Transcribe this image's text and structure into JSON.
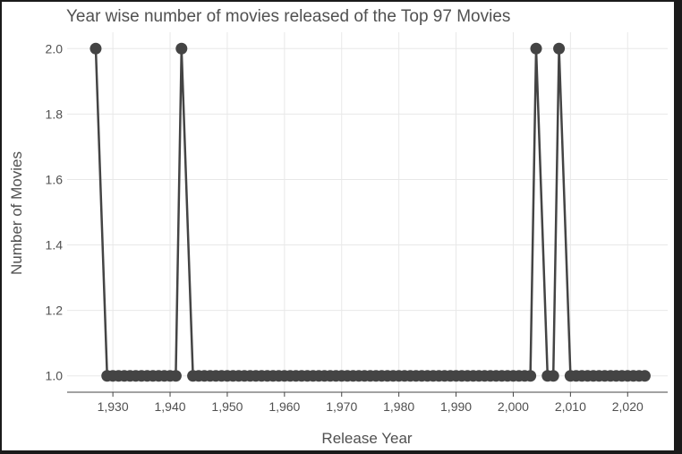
{
  "chart_data": {
    "type": "line",
    "title": "Year wise number of movies released of the Top 97 Movies",
    "xlabel": "Release Year",
    "ylabel": "Number of Movies",
    "xlim": [
      1922,
      2027
    ],
    "ylim": [
      0.95,
      2.05
    ],
    "x_ticks": [
      1930,
      1940,
      1950,
      1960,
      1970,
      1980,
      1990,
      2000,
      2010,
      2020
    ],
    "x_tick_labels": [
      "1,930",
      "1,940",
      "1,950",
      "1,960",
      "1,970",
      "1,980",
      "1,990",
      "2,000",
      "2,010",
      "2,020"
    ],
    "y_ticks": [
      1.0,
      1.2,
      1.4,
      1.6,
      1.8,
      2.0
    ],
    "y_tick_labels": [
      "1.0",
      "1.2",
      "1.4",
      "1.6",
      "1.8",
      "2.0"
    ],
    "grid": true,
    "line_color": "#444444",
    "series": [
      {
        "x": [
          1927,
          1929,
          1930,
          1931,
          1932,
          1933,
          1934,
          1935,
          1936,
          1937,
          1938,
          1939,
          1940,
          1941,
          1942,
          1944,
          1945,
          1946,
          1947,
          1948,
          1949,
          1950,
          1951,
          1952,
          1953,
          1954,
          1955,
          1956,
          1957,
          1958,
          1959,
          1960,
          1961,
          1962,
          1963,
          1964,
          1965,
          1966,
          1967,
          1968,
          1969,
          1970,
          1971,
          1972,
          1973,
          1974,
          1975,
          1976,
          1977,
          1978,
          1979,
          1980,
          1981,
          1982,
          1983,
          1984,
          1985,
          1986,
          1987,
          1988,
          1989,
          1990,
          1991,
          1992,
          1993,
          1994,
          1995,
          1996,
          1997,
          1998,
          1999,
          2000,
          2001,
          2002,
          2003,
          2004,
          2006,
          2007,
          2008,
          2010,
          2011,
          2012,
          2013,
          2014,
          2015,
          2016,
          2017,
          2018,
          2019,
          2020,
          2021,
          2022,
          2023
        ],
        "y": [
          2,
          1,
          1,
          1,
          1,
          1,
          1,
          1,
          1,
          1,
          1,
          1,
          1,
          1,
          2,
          1,
          1,
          1,
          1,
          1,
          1,
          1,
          1,
          1,
          1,
          1,
          1,
          1,
          1,
          1,
          1,
          1,
          1,
          1,
          1,
          1,
          1,
          1,
          1,
          1,
          1,
          1,
          1,
          1,
          1,
          1,
          1,
          1,
          1,
          1,
          1,
          1,
          1,
          1,
          1,
          1,
          1,
          1,
          1,
          1,
          1,
          1,
          1,
          1,
          1,
          1,
          1,
          1,
          1,
          1,
          1,
          1,
          1,
          1,
          1,
          2,
          1,
          1,
          2,
          1,
          1,
          1,
          1,
          1,
          1,
          1,
          1,
          1,
          1,
          1,
          1,
          1,
          1
        ]
      }
    ]
  }
}
